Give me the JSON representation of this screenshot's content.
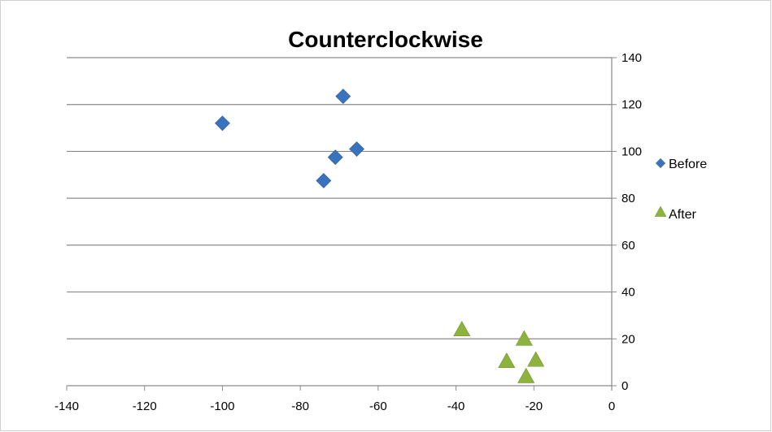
{
  "chart_data": {
    "type": "scatter",
    "title": "Counterclockwise",
    "xlabel": "",
    "ylabel": "",
    "xlim": [
      -140,
      0
    ],
    "ylim": [
      0,
      140
    ],
    "x_ticks": [
      -140,
      -120,
      -100,
      -80,
      -60,
      -40,
      -20,
      0
    ],
    "y_ticks": [
      0,
      20,
      40,
      60,
      80,
      100,
      120,
      140
    ],
    "grid": "horizontal major",
    "y_axis_position": "right",
    "legend": "right",
    "series": [
      {
        "name": "Before",
        "marker": "diamond",
        "color": "#3a73bd",
        "points": [
          [
            -100,
            112
          ],
          [
            -69,
            123.5
          ],
          [
            -65.5,
            101
          ],
          [
            -71,
            97.5
          ],
          [
            -74,
            87.5
          ]
        ]
      },
      {
        "name": "After",
        "marker": "triangle",
        "color": "#8db33e",
        "points": [
          [
            -38.5,
            24
          ],
          [
            -22.5,
            20
          ],
          [
            -19.5,
            11
          ],
          [
            -27,
            10.5
          ],
          [
            -22,
            4
          ]
        ]
      }
    ]
  }
}
